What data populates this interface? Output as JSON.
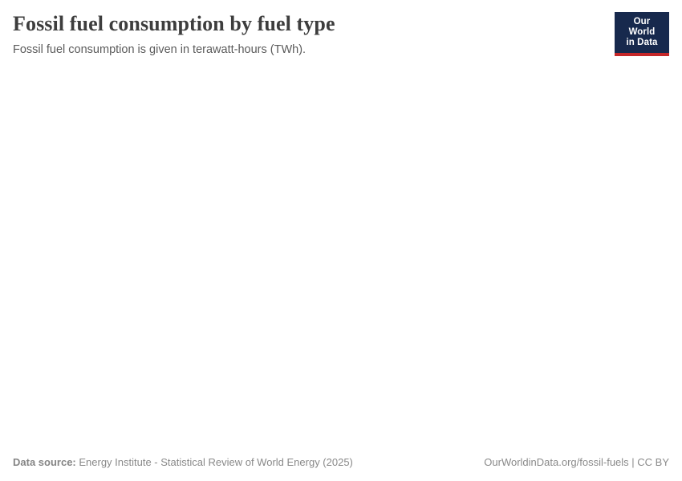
{
  "header": {
    "title": "Fossil fuel consumption by fuel type",
    "subtitle": "Fossil fuel consumption is given in terawatt-hours (TWh)."
  },
  "logo": {
    "line1": "Our World",
    "line2": "in Data",
    "background_color": "#17294d",
    "accent_color": "#c52729",
    "text_color": "#ffffff"
  },
  "chart_data": {
    "type": "area",
    "title": "Fossil fuel consumption by fuel type",
    "subtitle": "Fossil fuel consumption is given in terawatt-hours (TWh).",
    "unit": "terawatt-hours (TWh)",
    "series": [],
    "categories": [],
    "note": "plot area is blank in the screenshot — no axes, gridlines, or data points are rendered"
  },
  "footer": {
    "source_label": "Data source:",
    "source_text": " Energy Institute - Statistical Review of World Energy (2025)",
    "link_text": "OurWorldinData.org/fossil-fuels | CC BY"
  }
}
